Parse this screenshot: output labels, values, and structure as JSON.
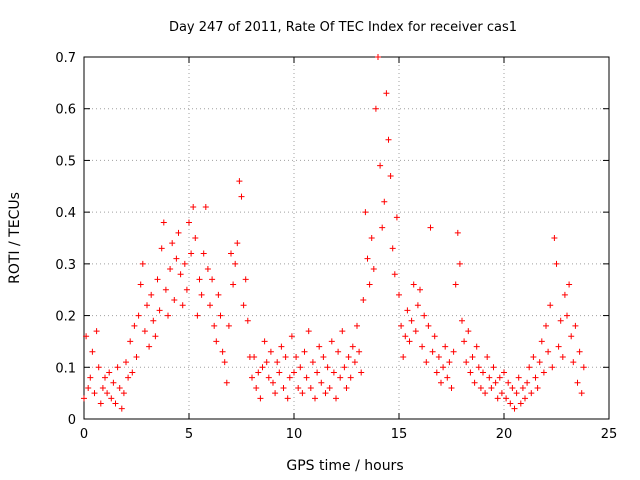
{
  "chart_data": {
    "type": "scatter",
    "title": "Day 247 of 2011, Rate Of TEC Index for receiver cas1",
    "xlabel": "GPS time / hours",
    "ylabel": "ROTI / TECUs",
    "xlim": [
      0,
      25
    ],
    "ylim": [
      0,
      0.7
    ],
    "xticks": [
      0,
      5,
      10,
      15,
      20,
      25
    ],
    "xtick_labels": [
      "0",
      "5",
      "10",
      "15",
      "20",
      "25"
    ],
    "yticks": [
      0,
      0.1,
      0.2,
      0.3,
      0.4,
      0.5,
      0.6,
      0.7
    ],
    "ytick_labels": [
      "0",
      "0.1",
      "0.2",
      "0.3",
      "0.4",
      "0.5",
      "0.6",
      "0.7"
    ],
    "grid": true,
    "marker": "+",
    "color": "#ff0000",
    "series": [
      {
        "name": "ROTI (receiver cas1)",
        "points": [
          [
            0.0,
            0.04
          ],
          [
            0.1,
            0.16
          ],
          [
            0.2,
            0.06
          ],
          [
            0.3,
            0.08
          ],
          [
            0.4,
            0.13
          ],
          [
            0.5,
            0.05
          ],
          [
            0.6,
            0.17
          ],
          [
            0.7,
            0.1
          ],
          [
            0.8,
            0.03
          ],
          [
            0.9,
            0.06
          ],
          [
            1.0,
            0.08
          ],
          [
            1.1,
            0.05
          ],
          [
            1.2,
            0.09
          ],
          [
            1.3,
            0.04
          ],
          [
            1.4,
            0.07
          ],
          [
            1.5,
            0.03
          ],
          [
            1.6,
            0.1
          ],
          [
            1.7,
            0.06
          ],
          [
            1.8,
            0.02
          ],
          [
            1.9,
            0.05
          ],
          [
            2.0,
            0.11
          ],
          [
            2.1,
            0.08
          ],
          [
            2.2,
            0.15
          ],
          [
            2.3,
            0.09
          ],
          [
            2.4,
            0.18
          ],
          [
            2.5,
            0.12
          ],
          [
            2.6,
            0.2
          ],
          [
            2.7,
            0.26
          ],
          [
            2.8,
            0.3
          ],
          [
            2.9,
            0.17
          ],
          [
            3.0,
            0.22
          ],
          [
            3.1,
            0.14
          ],
          [
            3.2,
            0.24
          ],
          [
            3.3,
            0.19
          ],
          [
            3.4,
            0.16
          ],
          [
            3.5,
            0.27
          ],
          [
            3.6,
            0.21
          ],
          [
            3.7,
            0.33
          ],
          [
            3.8,
            0.38
          ],
          [
            3.9,
            0.25
          ],
          [
            4.0,
            0.2
          ],
          [
            4.1,
            0.29
          ],
          [
            4.2,
            0.34
          ],
          [
            4.3,
            0.23
          ],
          [
            4.4,
            0.31
          ],
          [
            4.5,
            0.36
          ],
          [
            4.6,
            0.28
          ],
          [
            4.7,
            0.22
          ],
          [
            4.8,
            0.3
          ],
          [
            4.9,
            0.25
          ],
          [
            5.0,
            0.38
          ],
          [
            5.1,
            0.32
          ],
          [
            5.2,
            0.41
          ],
          [
            5.3,
            0.35
          ],
          [
            5.4,
            0.2
          ],
          [
            5.5,
            0.27
          ],
          [
            5.6,
            0.24
          ],
          [
            5.7,
            0.32
          ],
          [
            5.8,
            0.41
          ],
          [
            5.9,
            0.29
          ],
          [
            6.0,
            0.22
          ],
          [
            6.1,
            0.27
          ],
          [
            6.2,
            0.18
          ],
          [
            6.3,
            0.15
          ],
          [
            6.4,
            0.24
          ],
          [
            6.5,
            0.2
          ],
          [
            6.6,
            0.13
          ],
          [
            6.7,
            0.11
          ],
          [
            6.8,
            0.07
          ],
          [
            6.9,
            0.18
          ],
          [
            7.0,
            0.32
          ],
          [
            7.1,
            0.26
          ],
          [
            7.2,
            0.3
          ],
          [
            7.3,
            0.34
          ],
          [
            7.4,
            0.46
          ],
          [
            7.5,
            0.43
          ],
          [
            7.6,
            0.22
          ],
          [
            7.7,
            0.27
          ],
          [
            7.8,
            0.19
          ],
          [
            7.9,
            0.12
          ],
          [
            8.0,
            0.08
          ],
          [
            8.1,
            0.12
          ],
          [
            8.2,
            0.06
          ],
          [
            8.3,
            0.09
          ],
          [
            8.4,
            0.04
          ],
          [
            8.5,
            0.1
          ],
          [
            8.6,
            0.15
          ],
          [
            8.7,
            0.11
          ],
          [
            8.8,
            0.08
          ],
          [
            8.9,
            0.13
          ],
          [
            9.0,
            0.07
          ],
          [
            9.1,
            0.05
          ],
          [
            9.2,
            0.11
          ],
          [
            9.3,
            0.09
          ],
          [
            9.4,
            0.14
          ],
          [
            9.5,
            0.06
          ],
          [
            9.6,
            0.12
          ],
          [
            9.7,
            0.04
          ],
          [
            9.8,
            0.08
          ],
          [
            9.9,
            0.16
          ],
          [
            10.0,
            0.09
          ],
          [
            10.1,
            0.12
          ],
          [
            10.2,
            0.06
          ],
          [
            10.3,
            0.1
          ],
          [
            10.4,
            0.05
          ],
          [
            10.5,
            0.13
          ],
          [
            10.6,
            0.08
          ],
          [
            10.7,
            0.17
          ],
          [
            10.8,
            0.06
          ],
          [
            10.9,
            0.11
          ],
          [
            11.0,
            0.04
          ],
          [
            11.1,
            0.09
          ],
          [
            11.2,
            0.14
          ],
          [
            11.3,
            0.07
          ],
          [
            11.4,
            0.12
          ],
          [
            11.5,
            0.05
          ],
          [
            11.6,
            0.1
          ],
          [
            11.7,
            0.06
          ],
          [
            11.8,
            0.15
          ],
          [
            11.9,
            0.09
          ],
          [
            12.0,
            0.04
          ],
          [
            12.1,
            0.13
          ],
          [
            12.2,
            0.08
          ],
          [
            12.3,
            0.17
          ],
          [
            12.4,
            0.1
          ],
          [
            12.5,
            0.06
          ],
          [
            12.6,
            0.12
          ],
          [
            12.7,
            0.08
          ],
          [
            12.8,
            0.14
          ],
          [
            12.9,
            0.11
          ],
          [
            13.0,
            0.18
          ],
          [
            13.1,
            0.13
          ],
          [
            13.2,
            0.09
          ],
          [
            13.3,
            0.23
          ],
          [
            13.4,
            0.4
          ],
          [
            13.5,
            0.31
          ],
          [
            13.6,
            0.26
          ],
          [
            13.7,
            0.35
          ],
          [
            13.8,
            0.29
          ],
          [
            13.9,
            0.6
          ],
          [
            14.0,
            0.7
          ],
          [
            14.1,
            0.49
          ],
          [
            14.2,
            0.37
          ],
          [
            14.3,
            0.42
          ],
          [
            14.4,
            0.63
          ],
          [
            14.5,
            0.54
          ],
          [
            14.6,
            0.47
          ],
          [
            14.7,
            0.33
          ],
          [
            14.8,
            0.28
          ],
          [
            14.9,
            0.39
          ],
          [
            15.0,
            0.24
          ],
          [
            15.1,
            0.18
          ],
          [
            15.2,
            0.12
          ],
          [
            15.3,
            0.16
          ],
          [
            15.4,
            0.21
          ],
          [
            15.5,
            0.15
          ],
          [
            15.6,
            0.19
          ],
          [
            15.7,
            0.26
          ],
          [
            15.8,
            0.17
          ],
          [
            15.9,
            0.22
          ],
          [
            16.0,
            0.25
          ],
          [
            16.1,
            0.14
          ],
          [
            16.2,
            0.2
          ],
          [
            16.3,
            0.11
          ],
          [
            16.4,
            0.18
          ],
          [
            16.5,
            0.37
          ],
          [
            16.6,
            0.13
          ],
          [
            16.7,
            0.16
          ],
          [
            16.8,
            0.09
          ],
          [
            16.9,
            0.12
          ],
          [
            17.0,
            0.07
          ],
          [
            17.1,
            0.1
          ],
          [
            17.2,
            0.14
          ],
          [
            17.3,
            0.08
          ],
          [
            17.4,
            0.11
          ],
          [
            17.5,
            0.06
          ],
          [
            17.6,
            0.13
          ],
          [
            17.7,
            0.26
          ],
          [
            17.8,
            0.36
          ],
          [
            17.9,
            0.3
          ],
          [
            18.0,
            0.19
          ],
          [
            18.1,
            0.15
          ],
          [
            18.2,
            0.11
          ],
          [
            18.3,
            0.17
          ],
          [
            18.4,
            0.09
          ],
          [
            18.5,
            0.12
          ],
          [
            18.6,
            0.07
          ],
          [
            18.7,
            0.14
          ],
          [
            18.8,
            0.1
          ],
          [
            18.9,
            0.06
          ],
          [
            19.0,
            0.09
          ],
          [
            19.1,
            0.05
          ],
          [
            19.2,
            0.12
          ],
          [
            19.3,
            0.08
          ],
          [
            19.4,
            0.06
          ],
          [
            19.5,
            0.1
          ],
          [
            19.6,
            0.07
          ],
          [
            19.7,
            0.04
          ],
          [
            19.8,
            0.08
          ],
          [
            19.9,
            0.05
          ],
          [
            20.0,
            0.09
          ],
          [
            20.1,
            0.04
          ],
          [
            20.2,
            0.07
          ],
          [
            20.3,
            0.03
          ],
          [
            20.4,
            0.06
          ],
          [
            20.5,
            0.02
          ],
          [
            20.6,
            0.05
          ],
          [
            20.7,
            0.08
          ],
          [
            20.8,
            0.03
          ],
          [
            20.9,
            0.06
          ],
          [
            21.0,
            0.04
          ],
          [
            21.1,
            0.07
          ],
          [
            21.2,
            0.1
          ],
          [
            21.3,
            0.05
          ],
          [
            21.4,
            0.12
          ],
          [
            21.5,
            0.08
          ],
          [
            21.6,
            0.06
          ],
          [
            21.7,
            0.11
          ],
          [
            21.8,
            0.15
          ],
          [
            21.9,
            0.09
          ],
          [
            22.0,
            0.18
          ],
          [
            22.1,
            0.13
          ],
          [
            22.2,
            0.22
          ],
          [
            22.3,
            0.1
          ],
          [
            22.4,
            0.35
          ],
          [
            22.5,
            0.3
          ],
          [
            22.6,
            0.14
          ],
          [
            22.7,
            0.19
          ],
          [
            22.8,
            0.12
          ],
          [
            22.9,
            0.24
          ],
          [
            23.0,
            0.2
          ],
          [
            23.1,
            0.26
          ],
          [
            23.2,
            0.16
          ],
          [
            23.3,
            0.11
          ],
          [
            23.4,
            0.18
          ],
          [
            23.5,
            0.07
          ],
          [
            23.6,
            0.13
          ],
          [
            23.7,
            0.05
          ],
          [
            23.8,
            0.1
          ]
        ]
      }
    ]
  }
}
